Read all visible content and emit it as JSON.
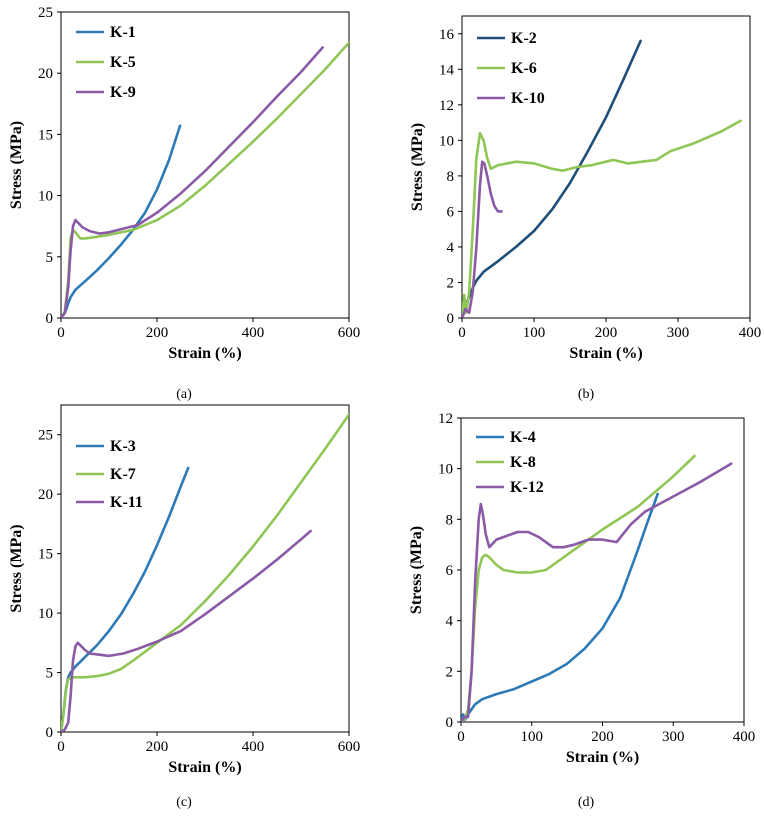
{
  "colors": {
    "blue": "#2e7ab7",
    "dark_blue": "#1f4e79",
    "green": "#8fc655",
    "purple": "#8a5aa6",
    "axis": "#000000"
  },
  "chart_data": [
    {
      "type": "line",
      "panel": "(a)",
      "xlabel": "Strain (%)",
      "ylabel": "Stress (MPa)",
      "xlim": [
        0,
        600
      ],
      "ylim": [
        0,
        25
      ],
      "xticks": [
        0,
        200,
        400,
        600
      ],
      "yticks": [
        0,
        5,
        10,
        15,
        20,
        25
      ],
      "legend_position": "top-left",
      "series": [
        {
          "name": "K-1",
          "color": "#2e7ab7",
          "x": [
            0,
            5,
            10,
            15,
            20,
            30,
            50,
            75,
            100,
            125,
            150,
            175,
            200,
            225,
            248
          ],
          "y": [
            0,
            0.3,
            0.6,
            1.2,
            1.7,
            2.3,
            3.0,
            3.9,
            4.9,
            6.0,
            7.2,
            8.6,
            10.5,
            12.9,
            15.7
          ]
        },
        {
          "name": "K-5",
          "color": "#8fc655",
          "x": [
            0,
            8,
            15,
            20,
            25,
            32,
            40,
            50,
            70,
            100,
            150,
            200,
            250,
            300,
            350,
            400,
            450,
            500,
            550,
            600
          ],
          "y": [
            0,
            0.5,
            3.0,
            6.5,
            7.2,
            6.9,
            6.5,
            6.5,
            6.6,
            6.8,
            7.2,
            8.0,
            9.2,
            10.8,
            12.6,
            14.4,
            16.3,
            18.3,
            20.3,
            22.5
          ]
        },
        {
          "name": "K-9",
          "color": "#8a5aa6",
          "x": [
            0,
            8,
            15,
            20,
            25,
            30,
            35,
            45,
            60,
            80,
            100,
            130,
            160,
            200,
            250,
            300,
            350,
            400,
            450,
            500,
            545
          ],
          "y": [
            0,
            0.4,
            2.5,
            5.5,
            7.5,
            8.0,
            7.8,
            7.4,
            7.1,
            6.9,
            7.0,
            7.3,
            7.6,
            8.6,
            10.2,
            12.0,
            14.0,
            16.0,
            18.1,
            20.1,
            22.1
          ]
        }
      ]
    },
    {
      "type": "line",
      "panel": "(b)",
      "xlabel": "Strain (%)",
      "ylabel": "Stress (MPa)",
      "xlim": [
        0,
        400
      ],
      "ylim": [
        0,
        17
      ],
      "xticks": [
        0,
        100,
        200,
        300,
        400
      ],
      "yticks": [
        0,
        2,
        4,
        6,
        8,
        10,
        12,
        14,
        16
      ],
      "legend_position": "top-left",
      "series": [
        {
          "name": "K-2",
          "color": "#1f4e79",
          "x": [
            0,
            3,
            6,
            10,
            15,
            20,
            30,
            50,
            75,
            100,
            125,
            150,
            175,
            200,
            225,
            248
          ],
          "y": [
            0,
            0.4,
            0.8,
            1.2,
            1.7,
            2.1,
            2.6,
            3.2,
            4.0,
            4.9,
            6.1,
            7.6,
            9.4,
            11.3,
            13.5,
            15.6
          ]
        },
        {
          "name": "K-6",
          "color": "#8fc655",
          "x": [
            0,
            3,
            6,
            10,
            15,
            20,
            25,
            30,
            35,
            40,
            50,
            75,
            100,
            125,
            140,
            160,
            180,
            200,
            210,
            230,
            250,
            270,
            290,
            320,
            360,
            387
          ],
          "y": [
            0,
            1.3,
            0.3,
            1.5,
            5.0,
            9.0,
            10.4,
            10.0,
            9.0,
            8.4,
            8.6,
            8.8,
            8.7,
            8.4,
            8.3,
            8.5,
            8.6,
            8.8,
            8.9,
            8.7,
            8.8,
            8.9,
            9.4,
            9.8,
            10.5,
            11.1
          ]
        },
        {
          "name": "K-10",
          "color": "#8a5aa6",
          "x": [
            0,
            5,
            10,
            15,
            20,
            25,
            28,
            31,
            35,
            40,
            45,
            50,
            55
          ],
          "y": [
            0,
            0.5,
            0.3,
            1.5,
            4.0,
            7.5,
            8.8,
            8.7,
            8.0,
            7.0,
            6.3,
            6.0,
            6.0
          ]
        }
      ]
    },
    {
      "type": "line",
      "panel": "(c)",
      "xlabel": "Strain (%)",
      "ylabel": "Stress (MPa)",
      "xlim": [
        0,
        600
      ],
      "ylim": [
        0,
        27.5
      ],
      "xticks": [
        0,
        200,
        400,
        600
      ],
      "yticks": [
        0,
        5,
        10,
        15,
        20,
        25
      ],
      "legend_position": "top-left",
      "series": [
        {
          "name": "K-3",
          "color": "#2e7ab7",
          "x": [
            0,
            5,
            10,
            15,
            20,
            30,
            50,
            75,
            100,
            125,
            150,
            175,
            200,
            225,
            250,
            265
          ],
          "y": [
            0,
            1.5,
            3.5,
            4.6,
            5.0,
            5.5,
            6.3,
            7.3,
            8.5,
            9.9,
            11.6,
            13.5,
            15.7,
            18.1,
            20.7,
            22.2
          ]
        },
        {
          "name": "K-7",
          "color": "#8fc655",
          "x": [
            0,
            5,
            10,
            15,
            20,
            30,
            50,
            75,
            100,
            125,
            150,
            200,
            250,
            300,
            350,
            400,
            450,
            500,
            550,
            600
          ],
          "y": [
            0,
            1.5,
            3.5,
            4.4,
            4.6,
            4.6,
            4.6,
            4.7,
            4.9,
            5.3,
            6.0,
            7.5,
            9.0,
            11.0,
            13.2,
            15.6,
            18.2,
            21.0,
            23.8,
            26.7
          ]
        },
        {
          "name": "K-11",
          "color": "#8a5aa6",
          "x": [
            0,
            8,
            15,
            20,
            25,
            30,
            35,
            40,
            50,
            60,
            80,
            100,
            130,
            160,
            200,
            250,
            300,
            350,
            400,
            450,
            500,
            520
          ],
          "y": [
            0,
            0.2,
            0.8,
            3.0,
            6.0,
            7.2,
            7.5,
            7.3,
            6.9,
            6.6,
            6.5,
            6.4,
            6.6,
            7.0,
            7.6,
            8.5,
            9.9,
            11.4,
            12.9,
            14.5,
            16.2,
            16.9
          ]
        }
      ]
    },
    {
      "type": "line",
      "panel": "(d)",
      "xlabel": "Strain (%)",
      "ylabel": "Stress (MPa)",
      "xlim": [
        0,
        400
      ],
      "ylim": [
        0,
        12
      ],
      "xticks": [
        0,
        100,
        200,
        300,
        400
      ],
      "yticks": [
        0,
        2,
        4,
        6,
        8,
        10,
        12
      ],
      "legend_position": "top-left",
      "series": [
        {
          "name": "K-4",
          "color": "#2e7ab7",
          "x": [
            0,
            3,
            6,
            10,
            15,
            20,
            30,
            50,
            75,
            100,
            125,
            150,
            175,
            200,
            225,
            250,
            265,
            278
          ],
          "y": [
            0,
            0.3,
            0.1,
            0.3,
            0.5,
            0.7,
            0.9,
            1.1,
            1.3,
            1.6,
            1.9,
            2.3,
            2.9,
            3.7,
            4.9,
            6.8,
            8.0,
            9.0
          ]
        },
        {
          "name": "K-8",
          "color": "#8fc655",
          "x": [
            0,
            5,
            10,
            15,
            20,
            25,
            30,
            35,
            40,
            50,
            60,
            80,
            100,
            120,
            150,
            200,
            250,
            300,
            330
          ],
          "y": [
            0,
            0.1,
            0.5,
            2.0,
            4.5,
            6.0,
            6.5,
            6.6,
            6.5,
            6.2,
            6.0,
            5.9,
            5.9,
            6.0,
            6.6,
            7.6,
            8.5,
            9.7,
            10.5
          ]
        },
        {
          "name": "K-12",
          "color": "#8a5aa6",
          "x": [
            0,
            5,
            10,
            15,
            20,
            25,
            28,
            31,
            35,
            40,
            50,
            60,
            70,
            80,
            95,
            110,
            130,
            145,
            160,
            180,
            200,
            220,
            240,
            260,
            300,
            340,
            382
          ],
          "y": [
            0,
            0.2,
            0.2,
            2.0,
            5.5,
            8.0,
            8.6,
            8.2,
            7.4,
            6.9,
            7.2,
            7.3,
            7.4,
            7.5,
            7.5,
            7.3,
            6.9,
            6.9,
            7.0,
            7.2,
            7.2,
            7.1,
            7.8,
            8.3,
            8.9,
            9.5,
            10.2
          ]
        }
      ]
    }
  ]
}
